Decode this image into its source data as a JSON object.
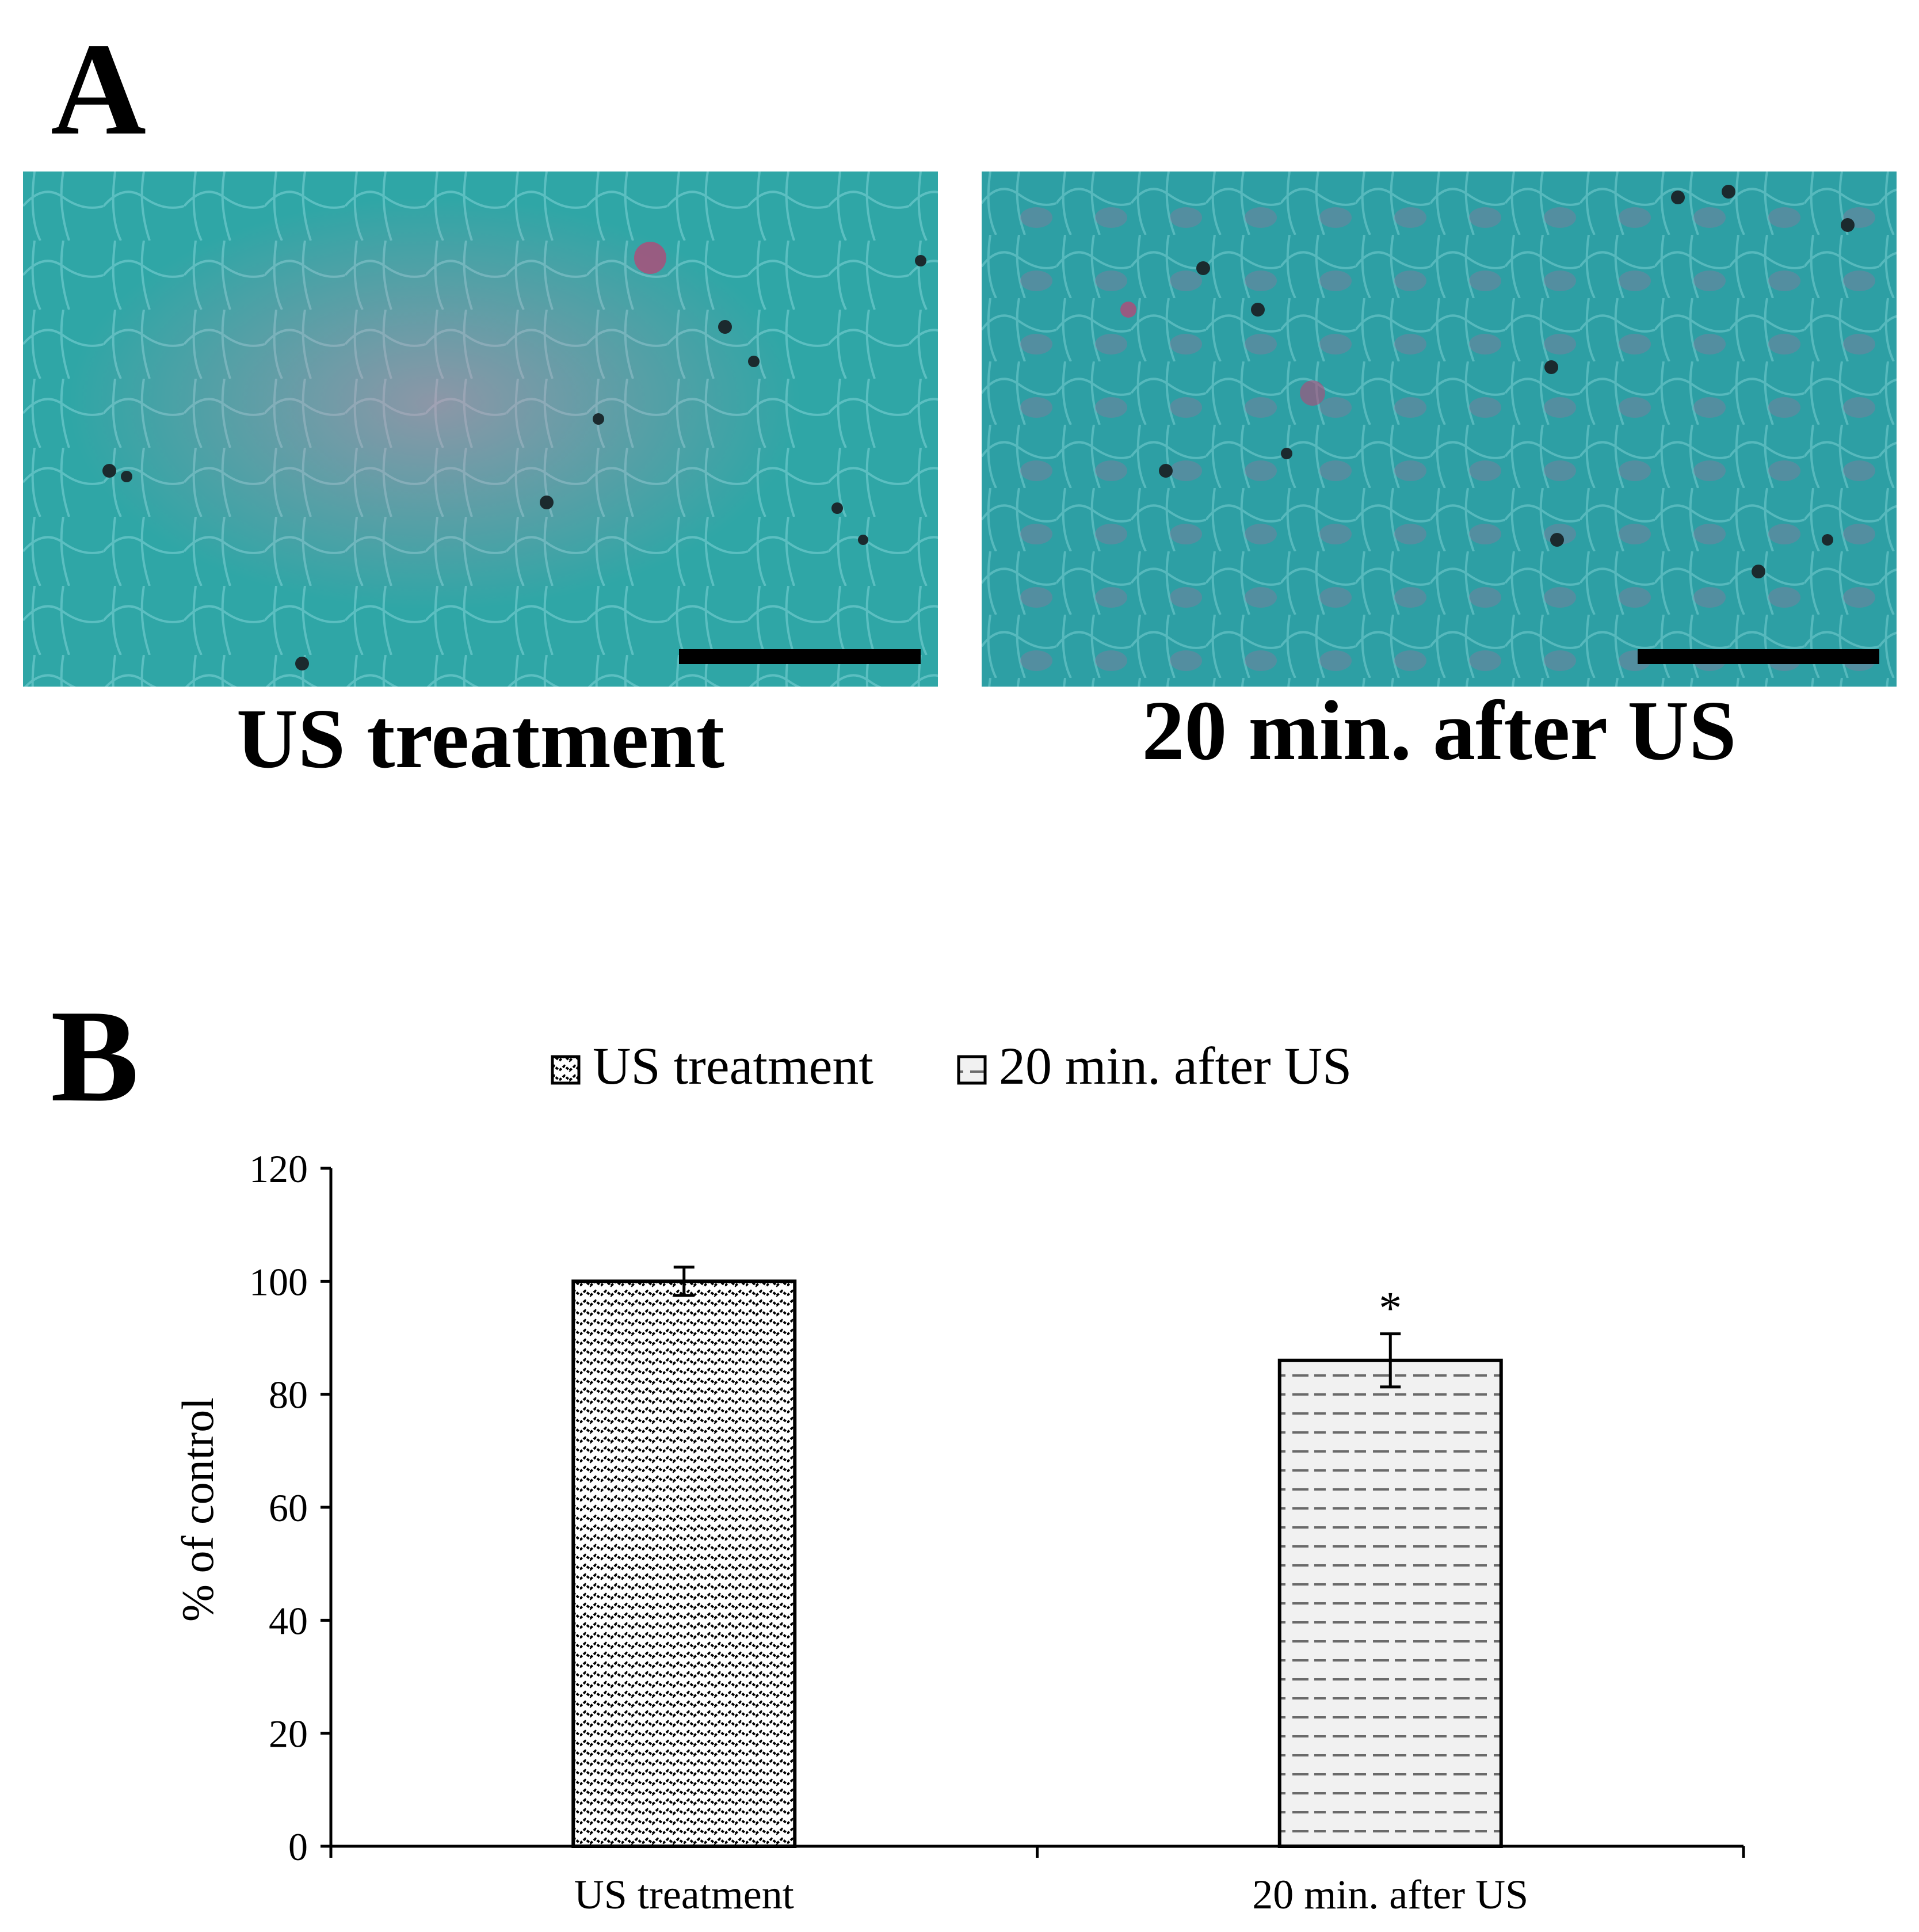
{
  "panel_a": {
    "letter": "A",
    "images": [
      {
        "caption": "US treatment"
      },
      {
        "caption": "20 min. after US"
      }
    ],
    "colors": {
      "stain_base": "#2fa6a6",
      "stain_pink": "#d98aa8",
      "nuclei": "#1b2a2e"
    }
  },
  "panel_b": {
    "letter": "B"
  },
  "chart_data": {
    "type": "bar",
    "title": "",
    "xlabel": "",
    "ylabel": "% of control",
    "ylim": [
      0,
      120
    ],
    "yticks": [
      0,
      20,
      40,
      60,
      80,
      100,
      120
    ],
    "categories": [
      "US treatment",
      "20 min. after US"
    ],
    "values": [
      100,
      86
    ],
    "errors": [
      2.5,
      4.7
    ],
    "annotations": [
      "",
      "*"
    ],
    "legend": {
      "placement": "top-center",
      "entries": [
        "US treatment",
        "20 min. after US"
      ]
    },
    "grid": false
  }
}
